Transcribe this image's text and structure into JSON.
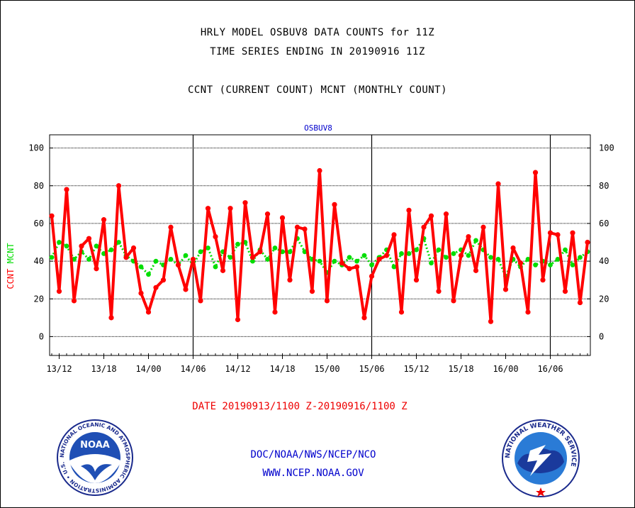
{
  "header": {
    "line1": "HRLY MODEL OSBUV8 DATA COUNTS for 11Z",
    "line2": "TIME SERIES ENDING IN 20190916 11Z",
    "line3": "CCNT (CURRENT COUNT) MCNT (MONTHLY COUNT)"
  },
  "footer": {
    "date_range": "DATE 20190913/1100 Z-20190916/1100 Z",
    "credit_line1": "DOC/NOAA/NWS/NCEP/NCO",
    "credit_line2": "WWW.NCEP.NOAA.GOV"
  },
  "logos": {
    "noaa_text": "NOAA",
    "noaa_ring": "NATIONAL OCEANIC AND ATMOSPHERIC ADMINISTRATION • U.S. DEPARTMENT OF COMMERCE •",
    "nws_ring": "NATIONAL WEATHER SERVICE"
  },
  "colors": {
    "ccnt": "#ff0000",
    "mcnt": "#00dd00",
    "title": "#0000cc"
  },
  "chart_data": {
    "type": "line",
    "title": "OSBUV8",
    "ylabel_parts": [
      {
        "text": "CCNT",
        "color": "#ff0000"
      },
      {
        "text": "MCNT",
        "color": "#00dd00"
      }
    ],
    "ylim": [
      -10,
      107
    ],
    "yticks": [
      0,
      20,
      40,
      60,
      80,
      100
    ],
    "xlim": [
      0,
      72.5
    ],
    "x_unit": "hours since 20190913/1100 Z",
    "xtick_labels": [
      {
        "x": 1,
        "label": "13/12"
      },
      {
        "x": 7,
        "label": "13/18"
      },
      {
        "x": 13,
        "label": "14/00"
      },
      {
        "x": 19,
        "label": "14/06"
      },
      {
        "x": 25,
        "label": "14/12"
      },
      {
        "x": 31,
        "label": "14/18"
      },
      {
        "x": 37,
        "label": "15/00"
      },
      {
        "x": 43,
        "label": "15/06"
      },
      {
        "x": 49,
        "label": "15/12"
      },
      {
        "x": 55,
        "label": "15/18"
      },
      {
        "x": 61,
        "label": "16/00"
      },
      {
        "x": 67,
        "label": "16/06"
      }
    ],
    "day_boundaries": [
      19,
      43,
      67
    ],
    "grid": true,
    "series": [
      {
        "name": "CCNT",
        "color": "#ff0000",
        "x": [
          0,
          1,
          2,
          3,
          4,
          5,
          6,
          7,
          8,
          9,
          10,
          11,
          12,
          13,
          14,
          15,
          16,
          17,
          18,
          19,
          20,
          21,
          22,
          23,
          24,
          25,
          26,
          27,
          28,
          29,
          30,
          31,
          32,
          33,
          34,
          35,
          36,
          37,
          38,
          39,
          40,
          41,
          42,
          43,
          44,
          45,
          46,
          47,
          48,
          49,
          50,
          51,
          52,
          53,
          54,
          55,
          56,
          57,
          58,
          59,
          60,
          61,
          62,
          63,
          64,
          65,
          66,
          67,
          68,
          69,
          70,
          71,
          72
        ],
        "values": [
          64,
          24,
          78,
          19,
          48,
          52,
          36,
          62,
          10,
          80,
          42,
          47,
          23,
          13,
          26,
          30,
          58,
          38,
          25,
          41,
          19,
          68,
          53,
          35,
          68,
          9,
          71,
          42,
          45,
          65,
          13,
          63,
          30,
          58,
          57,
          24,
          88,
          19,
          70,
          39,
          36,
          37,
          10,
          32,
          41,
          43,
          54,
          13,
          67,
          30,
          58,
          64,
          24,
          65,
          19,
          43,
          53,
          35,
          58,
          8,
          81,
          25,
          47,
          39,
          13,
          87,
          30,
          55,
          54,
          24,
          55,
          18,
          50
        ]
      },
      {
        "name": "MCNT",
        "color": "#00dd00",
        "x": [
          0,
          1,
          2,
          3,
          4,
          5,
          6,
          7,
          8,
          9,
          10,
          11,
          12,
          13,
          14,
          15,
          16,
          17,
          18,
          19,
          20,
          21,
          22,
          23,
          24,
          25,
          26,
          27,
          28,
          29,
          30,
          31,
          32,
          33,
          34,
          35,
          36,
          37,
          38,
          39,
          40,
          41,
          42,
          43,
          44,
          45,
          46,
          47,
          48,
          49,
          50,
          51,
          52,
          53,
          54,
          55,
          56,
          57,
          58,
          59,
          60,
          61,
          62,
          63,
          64,
          65,
          66,
          67,
          68,
          69,
          70,
          71,
          72
        ],
        "values": [
          42,
          50,
          48,
          41,
          45,
          41,
          48,
          44,
          46,
          50,
          43,
          40,
          37,
          33,
          40,
          38,
          41,
          38,
          43,
          38,
          45,
          47,
          37,
          45,
          42,
          49,
          50,
          40,
          46,
          41,
          47,
          45,
          45,
          52,
          45,
          41,
          40,
          34,
          40,
          38,
          42,
          40,
          43,
          38,
          42,
          46,
          37,
          44,
          44,
          46,
          52,
          39,
          46,
          42,
          44,
          46,
          43,
          51,
          46,
          42,
          41,
          32,
          41,
          37,
          41,
          38,
          40,
          38,
          41,
          46,
          38,
          42,
          45
        ]
      }
    ]
  }
}
